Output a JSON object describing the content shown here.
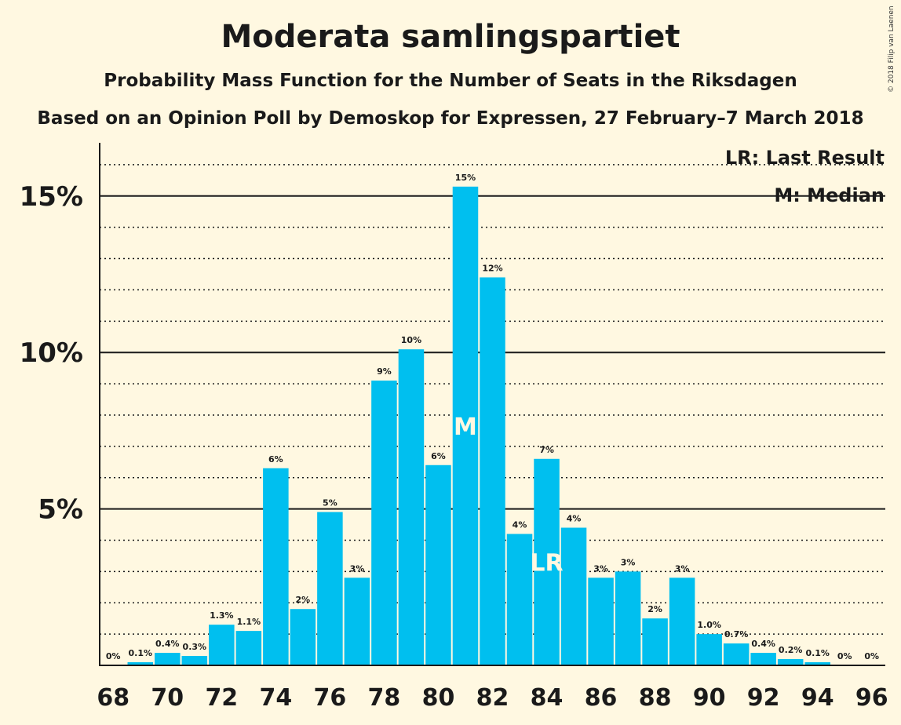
{
  "title": "Moderata samlingspartiet",
  "subtitle": "Probability Mass Function for the Number of Seats in the Riksdagen",
  "subtitle2": "Based on an Opinion Poll by Demoskop for Expressen, 27 February–7 March 2018",
  "copyright": "© 2018 Filip van Laenen",
  "legend": {
    "lr": "LR: Last Result",
    "m": "M: Median"
  },
  "colors": {
    "bar": "#00BFEF",
    "background": "#FFF8E1",
    "marker_text": "#FFF8E1"
  },
  "chart_data": {
    "type": "bar",
    "x": [
      68,
      69,
      70,
      71,
      72,
      73,
      74,
      75,
      76,
      77,
      78,
      79,
      80,
      81,
      82,
      83,
      84,
      85,
      86,
      87,
      88,
      89,
      90,
      91,
      92,
      93,
      94,
      95,
      96
    ],
    "values": [
      0,
      0.1,
      0.4,
      0.3,
      1.3,
      1.1,
      6.3,
      1.8,
      4.9,
      2.8,
      9.1,
      10.1,
      6.4,
      15.3,
      12.4,
      4.2,
      6.6,
      4.4,
      2.8,
      3.0,
      1.5,
      2.8,
      1.0,
      0.7,
      0.4,
      0.2,
      0.1,
      0,
      0
    ],
    "labels": [
      "0%",
      "0.1%",
      "0.4%",
      "0.3%",
      "1.3%",
      "1.1%",
      "6%",
      "2%",
      "5%",
      "3%",
      "9%",
      "10%",
      "6%",
      "15%",
      "12%",
      "4%",
      "7%",
      "4%",
      "3%",
      "3%",
      "2%",
      "3%",
      "1.0%",
      "0.7%",
      "0.4%",
      "0.2%",
      "0.1%",
      "0%",
      "0%"
    ],
    "xticks": [
      "68",
      "70",
      "72",
      "74",
      "76",
      "78",
      "80",
      "82",
      "84",
      "86",
      "88",
      "90",
      "92",
      "94",
      "96"
    ],
    "yticks": [
      {
        "value": 5,
        "label": "5%"
      },
      {
        "value": 10,
        "label": "10%"
      },
      {
        "value": 15,
        "label": "15%"
      }
    ],
    "ylim": [
      0,
      16.7
    ],
    "median": {
      "x": 81,
      "label": "M"
    },
    "last_result": {
      "x": 84,
      "label": "LR"
    },
    "grid": "dotted minor lines every 1%, solid major lines every 5%",
    "legend_position": "top-right"
  }
}
